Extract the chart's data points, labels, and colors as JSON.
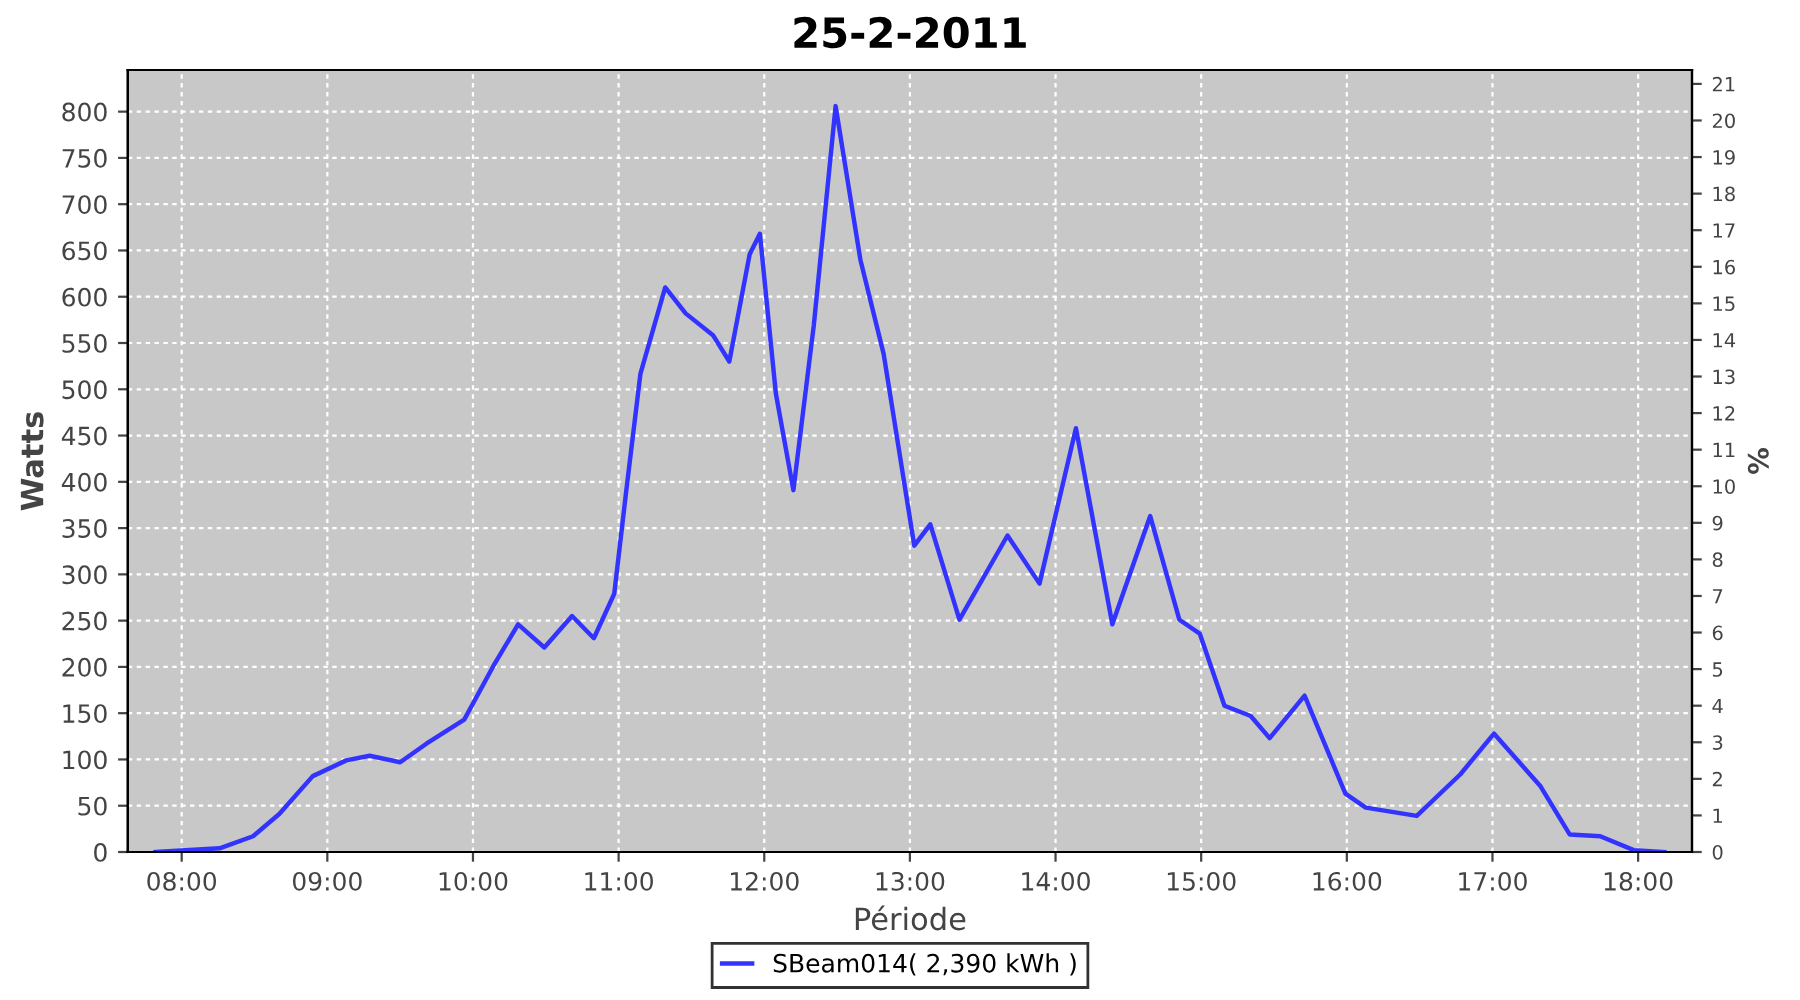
{
  "chart_data": {
    "type": "line",
    "title": "25-2-2011",
    "xlabel": "Période",
    "ylabel": "Watts",
    "y2label": "%",
    "xlim": [
      7.63,
      18.37
    ],
    "ylim": [
      0,
      845
    ],
    "y2lim": [
      0,
      21.38
    ],
    "xticks": [
      {
        "value": 8,
        "label": "08:00"
      },
      {
        "value": 9,
        "label": "09:00"
      },
      {
        "value": 10,
        "label": "10:00"
      },
      {
        "value": 11,
        "label": "11:00"
      },
      {
        "value": 12,
        "label": "12:00"
      },
      {
        "value": 13,
        "label": "13:00"
      },
      {
        "value": 14,
        "label": "14:00"
      },
      {
        "value": 15,
        "label": "15:00"
      },
      {
        "value": 16,
        "label": "16:00"
      },
      {
        "value": 17,
        "label": "17:00"
      },
      {
        "value": 18,
        "label": "18:00"
      }
    ],
    "yticks": [
      0,
      50,
      100,
      150,
      200,
      250,
      300,
      350,
      400,
      450,
      500,
      550,
      600,
      650,
      700,
      750,
      800
    ],
    "y2ticks": [
      0,
      1,
      2,
      3,
      4,
      5,
      6,
      7,
      8,
      9,
      10,
      11,
      12,
      13,
      14,
      15,
      16,
      17,
      18,
      19,
      20,
      21
    ],
    "grid": true,
    "legend": "bottom",
    "marker": "none",
    "line_style": "solid",
    "series": [
      {
        "name": "SBeam014( 2,390 kWh )",
        "color": "#3333ff",
        "x": [
          7.82,
          8.26,
          8.49,
          8.67,
          8.9,
          9.13,
          9.29,
          9.5,
          9.68,
          9.94,
          10.14,
          10.31,
          10.49,
          10.68,
          10.83,
          10.97,
          11.05,
          11.15,
          11.32,
          11.46,
          11.65,
          11.76,
          11.9,
          11.97,
          12.08,
          12.2,
          12.34,
          12.49,
          12.66,
          12.82,
          13.03,
          13.14,
          13.34,
          13.67,
          13.89,
          14.14,
          14.39,
          14.65,
          14.85,
          14.99,
          15.16,
          15.34,
          15.47,
          15.71,
          15.99,
          16.13,
          16.48,
          16.78,
          17.01,
          17.33,
          17.53,
          17.74,
          17.97,
          18.18
        ],
        "values": [
          0,
          4,
          17,
          41,
          82,
          99,
          104,
          97,
          117,
          143,
          201,
          246,
          221,
          255,
          231,
          279,
          387,
          517,
          610,
          582,
          558,
          530,
          646,
          668,
          495,
          391,
          569,
          806,
          640,
          538,
          331,
          354,
          251,
          342,
          290,
          458,
          246,
          363,
          251,
          236,
          158,
          147,
          123,
          169,
          63,
          48,
          39,
          84,
          128,
          71,
          19,
          17,
          2,
          0
        ]
      }
    ]
  }
}
